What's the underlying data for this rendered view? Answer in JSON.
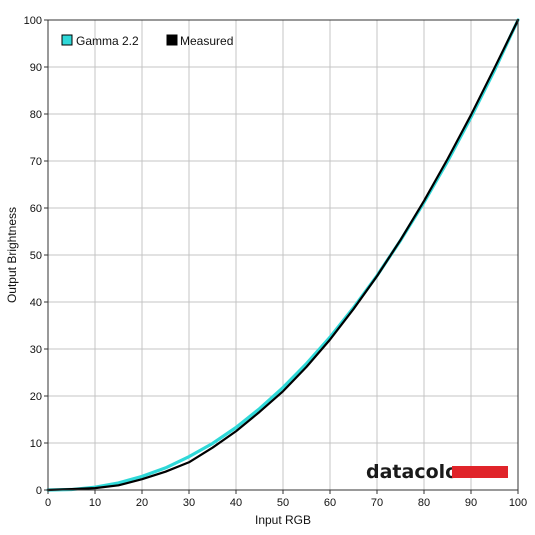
{
  "chart_data": {
    "type": "line",
    "title": "",
    "xlabel": "Input RGB",
    "ylabel": "Output Brightness",
    "xlim": [
      0,
      100
    ],
    "ylim": [
      0,
      100
    ],
    "x_ticks": [
      0,
      10,
      20,
      30,
      40,
      50,
      60,
      70,
      80,
      90,
      100
    ],
    "y_ticks": [
      0,
      10,
      20,
      30,
      40,
      50,
      60,
      70,
      80,
      90,
      100
    ],
    "grid": true,
    "legend_position": "top-left",
    "series": [
      {
        "name": "Gamma 2.2",
        "color": "#2fd8d8",
        "x": [
          0,
          5,
          10,
          15,
          20,
          25,
          30,
          35,
          40,
          45,
          50,
          55,
          60,
          65,
          70,
          75,
          80,
          85,
          90,
          95,
          100
        ],
        "y": [
          0,
          0.1,
          0.6,
          1.5,
          2.9,
          4.7,
          7.1,
          9.9,
          13.3,
          17.3,
          21.8,
          26.9,
          32.5,
          38.8,
          45.6,
          53.1,
          61.2,
          69.9,
          79.3,
          89.3,
          100
        ]
      },
      {
        "name": "Measured",
        "color": "#000000",
        "x": [
          0,
          5,
          10,
          15,
          20,
          25,
          30,
          35,
          40,
          45,
          50,
          55,
          60,
          65,
          70,
          75,
          80,
          85,
          90,
          95,
          100
        ],
        "y": [
          0,
          0.2,
          0.4,
          1.0,
          2.3,
          3.9,
          5.9,
          9.0,
          12.5,
          16.6,
          21.0,
          26.2,
          32.0,
          38.5,
          45.5,
          53.2,
          61.5,
          70.4,
          79.8,
          89.8,
          100
        ]
      }
    ]
  },
  "brand": {
    "name": "datacolor",
    "bar_color": "#e0242a"
  }
}
